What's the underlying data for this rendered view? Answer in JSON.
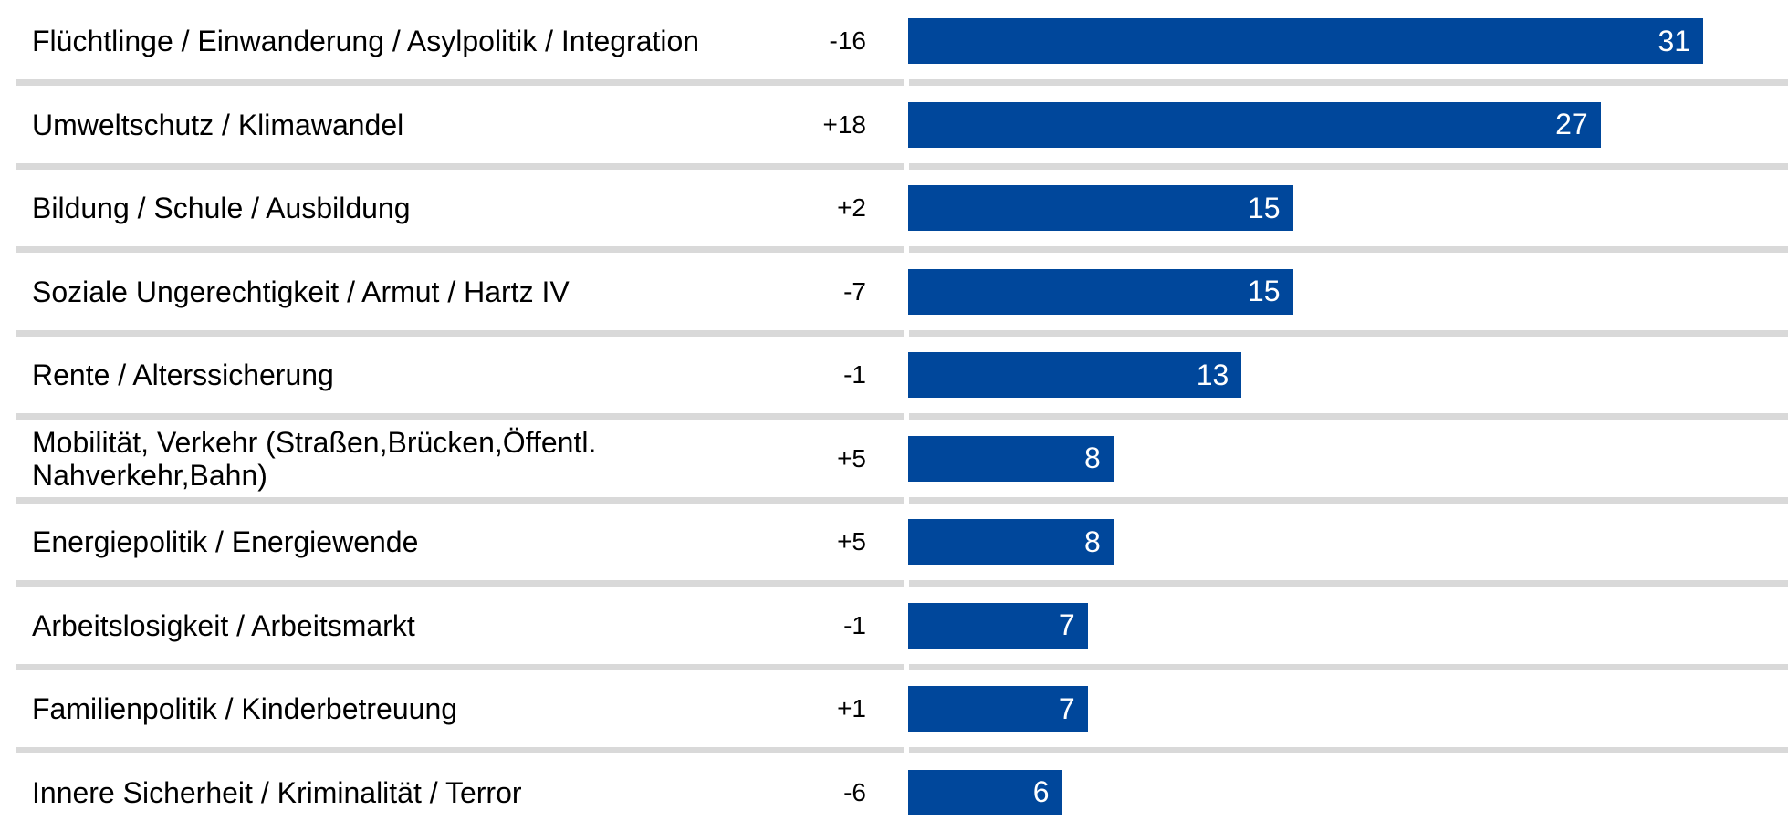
{
  "chart_data": {
    "type": "bar",
    "orientation": "horizontal",
    "categories": [
      "Flüchtlinge / Einwanderung / Asylpolitik / Integration",
      "Umweltschutz / Klimawandel",
      "Bildung / Schule / Ausbildung",
      "Soziale Ungerechtigkeit / Armut / Hartz IV",
      "Rente / Alterssicherung",
      "Mobilität, Verkehr (Straßen,Brücken,Öffentl. Nahverkehr,Bahn)",
      "Energiepolitik / Energiewende",
      "Arbeitslosigkeit / Arbeitsmarkt",
      "Familienpolitik / Kinderbetreuung",
      "Innere Sicherheit / Kriminalität / Terror"
    ],
    "changes": [
      "-16",
      "+18",
      "+2",
      "-7",
      "-1",
      "+5",
      "+5",
      "-1",
      "+1",
      "-6"
    ],
    "values": [
      31,
      27,
      15,
      15,
      13,
      8,
      8,
      7,
      7,
      6
    ],
    "color": "#00479b"
  }
}
